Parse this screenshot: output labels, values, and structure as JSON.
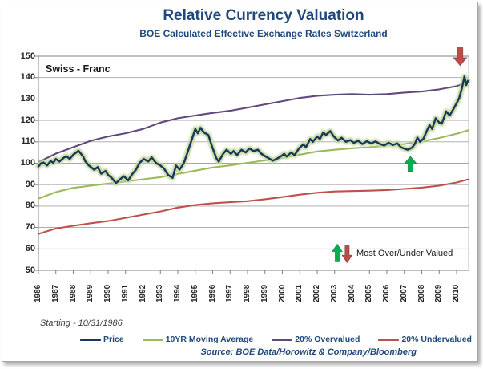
{
  "title": "Relative Currency Valuation",
  "subtitle": "BOE Calculated Effective Exchange Rates Switzerland",
  "chart_label": "Swiss - Franc",
  "footnote": "Starting - 10/31/1986",
  "source": "Source: BOE Data/Horowitz & Company/Bloomberg",
  "colors": {
    "title_text": "#1F497D",
    "price": "#17375D",
    "price_glow": "#C4D79B",
    "moving_average": "#9BBB59",
    "overvalued": "#604A7B",
    "undervalued": "#C0504D",
    "arrow_green": "#00B050",
    "arrow_red": "#BE4B48",
    "gridline": "#A6A6A6",
    "axis": "#808080"
  },
  "chart_data": {
    "type": "line",
    "title": "Relative Currency Valuation",
    "subtitle": "BOE Calculated Effective Exchange Rates Switzerland",
    "xlabel": "",
    "ylabel": "",
    "ylim": [
      50,
      150
    ],
    "ytick_step": 10,
    "grid": "horizontal",
    "legend_position": "bottom",
    "x_ticks": [
      1986,
      1987,
      1988,
      1989,
      1990,
      1991,
      1992,
      1993,
      1994,
      1995,
      1996,
      1997,
      1998,
      1999,
      2000,
      2001,
      2002,
      2003,
      2004,
      2005,
      2006,
      2007,
      2008,
      2009,
      2010
    ],
    "series": [
      {
        "name": "Price",
        "color": "#17375D",
        "glow": "#C4D79B",
        "x": [
          1986.0,
          1986.15,
          1986.3,
          1986.5,
          1986.7,
          1986.85,
          1987.0,
          1987.2,
          1987.45,
          1987.6,
          1987.8,
          1988.0,
          1988.3,
          1988.55,
          1988.7,
          1988.9,
          1989.2,
          1989.4,
          1989.6,
          1989.85,
          1990.0,
          1990.2,
          1990.45,
          1990.7,
          1990.9,
          1991.15,
          1991.4,
          1991.6,
          1991.8,
          1992.05,
          1992.3,
          1992.5,
          1992.75,
          1993.0,
          1993.2,
          1993.45,
          1993.7,
          1993.9,
          1994.1,
          1994.35,
          1994.6,
          1994.8,
          1995.0,
          1995.15,
          1995.3,
          1995.5,
          1995.75,
          1995.95,
          1996.2,
          1996.35,
          1996.6,
          1996.8,
          1997.05,
          1997.2,
          1997.4,
          1997.65,
          1997.9,
          1998.1,
          1998.35,
          1998.6,
          1998.8,
          1999.05,
          1999.3,
          1999.45,
          1999.65,
          1999.9,
          2000.1,
          2000.25,
          2000.5,
          2000.7,
          2000.95,
          2001.2,
          2001.35,
          2001.6,
          2001.75,
          2002.0,
          2002.15,
          2002.35,
          2002.5,
          2002.75,
          2002.95,
          2003.2,
          2003.4,
          2003.65,
          2003.9,
          2004.1,
          2004.35,
          2004.6,
          2004.85,
          2005.1,
          2005.35,
          2005.6,
          2005.85,
          2006.1,
          2006.35,
          2006.6,
          2006.8,
          2007.0,
          2007.2,
          2007.45,
          2007.6,
          2007.75,
          2007.9,
          2008.1,
          2008.3,
          2008.45,
          2008.6,
          2008.8,
          2009.0,
          2009.15,
          2009.4,
          2009.6,
          2009.8,
          2010.0,
          2010.15,
          2010.3,
          2010.45,
          2010.55,
          2010.65
        ],
        "values": [
          98.5,
          100.0,
          100.3,
          99.0,
          101.0,
          100.2,
          102.0,
          100.8,
          102.5,
          103.3,
          102.0,
          104.0,
          105.8,
          103.3,
          100.8,
          98.9,
          97.0,
          98.2,
          95.1,
          96.4,
          94.5,
          93.2,
          90.7,
          92.6,
          93.9,
          92.0,
          95.1,
          97.0,
          100.1,
          102.0,
          100.8,
          102.7,
          100.1,
          98.9,
          97.6,
          94.5,
          93.2,
          98.9,
          97.0,
          100.1,
          106.0,
          111.0,
          116.0,
          114.0,
          116.5,
          114.4,
          113.2,
          108.2,
          102.5,
          100.7,
          104.4,
          106.3,
          104.4,
          105.7,
          103.8,
          106.3,
          105.0,
          106.9,
          105.7,
          106.3,
          104.4,
          103.1,
          101.9,
          101.2,
          101.9,
          103.1,
          104.4,
          103.1,
          105.0,
          103.8,
          106.9,
          108.8,
          107.5,
          111.3,
          110.0,
          112.5,
          111.3,
          114.4,
          113.2,
          115.0,
          112.5,
          110.6,
          111.9,
          110.0,
          110.8,
          109.5,
          110.5,
          109.0,
          110.3,
          109.3,
          110.2,
          109.0,
          108.3,
          109.6,
          108.5,
          109.3,
          107.5,
          106.8,
          106.3,
          107.3,
          109.0,
          112.0,
          110.0,
          111.5,
          115.3,
          117.8,
          116.0,
          121.0,
          119.0,
          118.5,
          124.2,
          122.3,
          125.0,
          128.0,
          130.5,
          134.8,
          140.5,
          136.5,
          138.5
        ]
      },
      {
        "name": "10YR Moving Average",
        "color": "#9BBB59",
        "x": [
          1986,
          1987,
          1988,
          1989,
          1990,
          1991,
          1992,
          1993,
          1994,
          1995,
          1996,
          1997,
          1998,
          1999,
          2000,
          2001,
          2002,
          2003,
          2004,
          2005,
          2006,
          2007,
          2008,
          2009,
          2010,
          2010.7
        ],
        "values": [
          83.5,
          86.5,
          88.5,
          89.5,
          90.5,
          91.5,
          92.5,
          93.5,
          95.0,
          96.5,
          98.0,
          99.0,
          100.2,
          101.3,
          102.5,
          104.0,
          105.5,
          106.3,
          107.0,
          107.5,
          108.2,
          109.0,
          110.2,
          111.8,
          113.8,
          115.5
        ]
      },
      {
        "name": "20% Overvalued",
        "color": "#604A7B",
        "x": [
          1986,
          1987,
          1988,
          1989,
          1990,
          1991,
          1992,
          1993,
          1994,
          1995,
          1996,
          1997,
          1998,
          1999,
          2000,
          2001,
          2002,
          2003,
          2004,
          2005,
          2006,
          2007,
          2008,
          2009,
          2010,
          2010.7
        ],
        "values": [
          100.5,
          104.5,
          107.5,
          110.5,
          112.5,
          114.0,
          116.0,
          119.0,
          121.0,
          122.3,
          123.5,
          124.5,
          126.0,
          127.5,
          129.0,
          130.5,
          131.5,
          132.0,
          132.3,
          132.0,
          132.3,
          133.0,
          133.5,
          134.5,
          136.0,
          138.0
        ]
      },
      {
        "name": "20% Undervalued",
        "color": "#C0504D",
        "x": [
          1986,
          1987,
          1988,
          1989,
          1990,
          1991,
          1992,
          1993,
          1994,
          1995,
          1996,
          1997,
          1998,
          1999,
          2000,
          2001,
          2002,
          2003,
          2004,
          2005,
          2006,
          2007,
          2008,
          2009,
          2010,
          2010.7
        ],
        "values": [
          67.0,
          69.5,
          70.8,
          72.0,
          73.0,
          74.5,
          76.0,
          77.5,
          79.3,
          80.5,
          81.3,
          81.8,
          82.3,
          83.2,
          84.2,
          85.3,
          86.2,
          86.8,
          87.0,
          87.2,
          87.5,
          88.0,
          88.6,
          89.5,
          91.0,
          92.5
        ]
      }
    ],
    "annotations": [
      {
        "id": "peak-arrow",
        "shape": "arrow-down",
        "color": "#BE4B48",
        "x": 2010.2,
        "value_tip": 145.5,
        "value_tail": 154.0,
        "width": 17
      },
      {
        "id": "trough-arrow",
        "shape": "arrow-up",
        "color": "#00B050",
        "x": 2007.35,
        "value_tip": 103.3,
        "value_tail": 96.0,
        "width": 15
      },
      {
        "id": "key-arrow-up",
        "shape": "arrow-up",
        "color": "#00B050",
        "x": 2003.15,
        "value_tip": 62.3,
        "value_tail": 54.3,
        "width": 13
      },
      {
        "id": "key-arrow-down",
        "shape": "arrow-down",
        "color": "#BE4B48",
        "x": 2003.72,
        "value_tip": 53.5,
        "value_tail": 61.5,
        "width": 13
      },
      {
        "id": "key-text",
        "shape": "text",
        "text": "Most Over/Under Valued",
        "x": 2004.25,
        "value": 58.0
      }
    ]
  }
}
